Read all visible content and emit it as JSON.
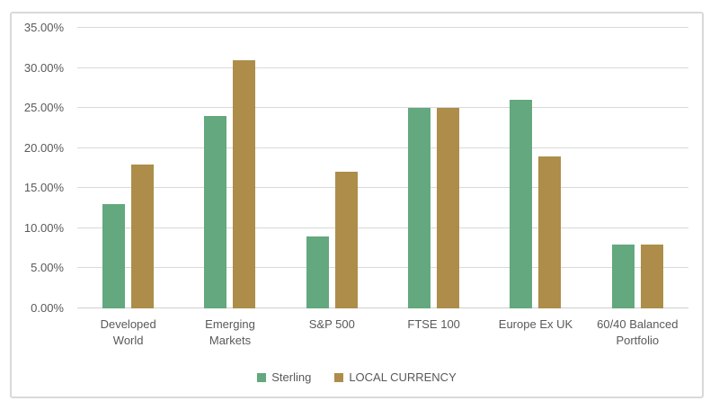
{
  "chart_data": {
    "type": "bar",
    "title": "",
    "xlabel": "",
    "ylabel": "",
    "ymax": 35,
    "grid": true,
    "legend_position": "bottom",
    "categories": [
      "Developed World",
      "Emerging Markets",
      "S&P 500",
      "FTSE 100",
      "Europe Ex UK",
      "60/40 Balanced Portfolio"
    ],
    "series": [
      {
        "name": "Sterling",
        "color": "#63A87E",
        "values": [
          13,
          24,
          9,
          25,
          26,
          8
        ]
      },
      {
        "name": "LOCAL CURRENCY",
        "color": "#AD8D49",
        "values": [
          18,
          31,
          17,
          25,
          19,
          8
        ]
      }
    ],
    "yticks": [
      {
        "label": "0.00%",
        "value": 0
      },
      {
        "label": "5.00%",
        "value": 5
      },
      {
        "label": "10.00%",
        "value": 10
      },
      {
        "label": "15.00%",
        "value": 15
      },
      {
        "label": "20.00%",
        "value": 20
      },
      {
        "label": "25.00%",
        "value": 25
      },
      {
        "label": "30.00%",
        "value": 30
      },
      {
        "label": "35.00%",
        "value": 35
      }
    ],
    "colors": {
      "gridline": "#d9d9d9",
      "axis_text": "#595959",
      "frame_border": "#d9d9d9",
      "background": "#ffffff"
    }
  }
}
